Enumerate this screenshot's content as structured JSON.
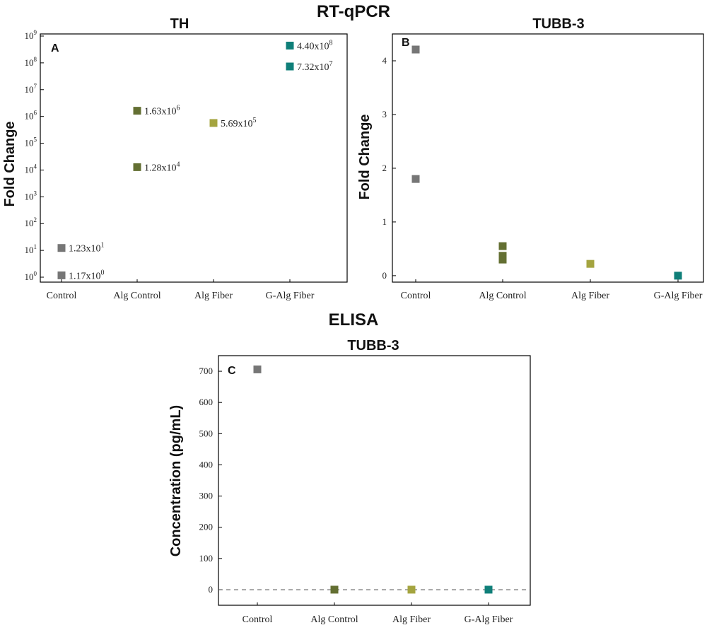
{
  "headings": {
    "top": "RT-qPCR",
    "bottom": "ELISA"
  },
  "colors": {
    "control": "#767676",
    "alg_control": "#636f32",
    "alg_fiber": "#a4a43f",
    "g_alg_fiber": "#0f7f79"
  },
  "chart_data": [
    {
      "panel": "A",
      "type": "scatter",
      "title": "TH",
      "xlabel": "",
      "ylabel": "Fold Change",
      "categories": [
        "Control",
        "Alg Control",
        "Alg Fiber",
        "G-Alg Fiber"
      ],
      "yscale": "log",
      "ylim": [
        1,
        1000000000
      ],
      "yticks": [
        {
          "exp": "0"
        },
        {
          "exp": "1"
        },
        {
          "exp": "2"
        },
        {
          "exp": "3"
        },
        {
          "exp": "4"
        },
        {
          "exp": "5"
        },
        {
          "exp": "6"
        },
        {
          "exp": "7"
        },
        {
          "exp": "8"
        },
        {
          "exp": "9"
        }
      ],
      "grid": false,
      "legend": "none",
      "points": [
        {
          "category": "Control",
          "value": 1.17,
          "label_mantissa": "1.17x10",
          "label_exp": "0"
        },
        {
          "category": "Control",
          "value": 12.3,
          "label_mantissa": "1.23x10",
          "label_exp": "1"
        },
        {
          "category": "Alg Control",
          "value": 12800,
          "label_mantissa": "1.28x10",
          "label_exp": "4"
        },
        {
          "category": "Alg Control",
          "value": 1630000,
          "label_mantissa": "1.63x10",
          "label_exp": "6"
        },
        {
          "category": "Alg Fiber",
          "value": 569000,
          "label_mantissa": "5.69x10",
          "label_exp": "5"
        },
        {
          "category": "G-Alg Fiber",
          "value": 73200000,
          "label_mantissa": "7.32x10",
          "label_exp": "7"
        },
        {
          "category": "G-Alg Fiber",
          "value": 440000000,
          "label_mantissa": "4.40x10",
          "label_exp": "8"
        }
      ]
    },
    {
      "panel": "B",
      "type": "scatter",
      "title": "TUBB-3",
      "xlabel": "",
      "ylabel": "Fold Change",
      "categories": [
        "Control",
        "Alg Control",
        "Alg Fiber",
        "G-Alg Fiber"
      ],
      "yscale": "linear",
      "ylim": [
        -0.12,
        4.5
      ],
      "yticks": [
        "0",
        "1",
        "2",
        "3",
        "4"
      ],
      "grid": false,
      "legend": "none",
      "points": [
        {
          "category": "Control",
          "value": 4.21
        },
        {
          "category": "Control",
          "value": 1.8
        },
        {
          "category": "Alg Control",
          "value": 0.55
        },
        {
          "category": "Alg Control",
          "value": 0.37
        },
        {
          "category": "Alg Control",
          "value": 0.3
        },
        {
          "category": "Alg Fiber",
          "value": 0.22
        },
        {
          "category": "G-Alg Fiber",
          "value": 0.0
        }
      ]
    },
    {
      "panel": "C",
      "type": "scatter",
      "title": "TUBB-3",
      "xlabel": "",
      "ylabel": "Concentration (pg/mL)",
      "categories": [
        "Control",
        "Alg Control",
        "Alg Fiber",
        "G-Alg Fiber"
      ],
      "yscale": "linear",
      "ylim": [
        -50,
        750
      ],
      "yticks": [
        "0",
        "100",
        "200",
        "300",
        "400",
        "500",
        "600",
        "700"
      ],
      "grid": false,
      "legend": "none",
      "reference_line": {
        "value": 0,
        "style": "dashed"
      },
      "points": [
        {
          "category": "Control",
          "value": 706
        },
        {
          "category": "Alg Control",
          "value": 0
        },
        {
          "category": "Alg Fiber",
          "value": 0
        },
        {
          "category": "G-Alg Fiber",
          "value": 0
        }
      ]
    }
  ]
}
